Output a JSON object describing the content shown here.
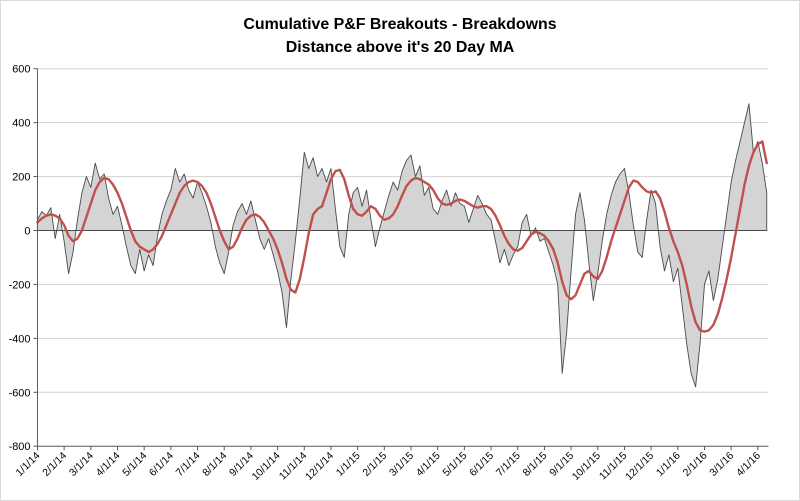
{
  "page": {
    "background": "#ffffff"
  },
  "chart_data": {
    "type": "area",
    "title": "Cumulative P&F Breakouts - Breakdowns",
    "subtitle": "Distance above it's 20 Day MA",
    "legend": "none",
    "grid": true,
    "ylim": [
      -800,
      600
    ],
    "y_ticks": [
      600,
      400,
      200,
      0,
      -200,
      -400,
      -600,
      -800
    ],
    "x_tick_labels": [
      "1/1/14",
      "2/1/14",
      "3/1/14",
      "4/1/14",
      "5/1/14",
      "6/1/14",
      "7/1/14",
      "8/1/14",
      "9/1/14",
      "10/1/14",
      "11/1/14",
      "12/1/14",
      "1/1/15",
      "2/1/15",
      "3/1/15",
      "4/1/15",
      "5/1/15",
      "6/1/15",
      "7/1/15",
      "8/1/15",
      "9/1/15",
      "10/1/15",
      "11/1/15",
      "12/1/15",
      "1/1/16",
      "2/1/16",
      "3/1/16",
      "4/1/16"
    ],
    "x_months_total": 27.4,
    "points_per_month": 6,
    "colors": {
      "area_fill": "#d4d4d4",
      "area_stroke": "#4a4a4a",
      "ma_line": "#c0504d",
      "grid": "#d3d3d3",
      "axis": "#595959",
      "text": "#000000"
    },
    "series": [
      {
        "name": "Cumulative P&F Breakouts - Breakdowns (daily)",
        "type": "area",
        "values": [
          40,
          70,
          55,
          85,
          -30,
          60,
          -40,
          -160,
          -80,
          40,
          140,
          200,
          160,
          250,
          190,
          210,
          120,
          60,
          90,
          20,
          -60,
          -130,
          -160,
          -70,
          -150,
          -90,
          -130,
          -20,
          60,
          110,
          150,
          230,
          180,
          210,
          150,
          120,
          180,
          140,
          90,
          30,
          -60,
          -120,
          -160,
          -80,
          20,
          70,
          100,
          60,
          110,
          40,
          -30,
          -70,
          -30,
          -90,
          -150,
          -230,
          -360,
          -180,
          -40,
          120,
          290,
          230,
          270,
          200,
          230,
          180,
          230,
          80,
          -60,
          -100,
          60,
          140,
          160,
          90,
          150,
          40,
          -60,
          10,
          70,
          130,
          180,
          150,
          220,
          260,
          280,
          200,
          240,
          130,
          160,
          80,
          60,
          110,
          150,
          90,
          140,
          100,
          90,
          30,
          80,
          130,
          100,
          60,
          40,
          -40,
          -120,
          -70,
          -130,
          -90,
          -60,
          30,
          60,
          -20,
          10,
          -40,
          -30,
          -80,
          -130,
          -200,
          -530,
          -380,
          -150,
          60,
          140,
          40,
          -120,
          -260,
          -160,
          -40,
          60,
          130,
          180,
          210,
          230,
          140,
          20,
          -80,
          -100,
          40,
          150,
          100,
          -60,
          -150,
          -90,
          -190,
          -140,
          -280,
          -420,
          -530,
          -580,
          -420,
          -200,
          -150,
          -260,
          -180,
          -60,
          60,
          180,
          260,
          330,
          400,
          470,
          290,
          330,
          250,
          140
        ]
      },
      {
        "name": "20 Day MA",
        "type": "line",
        "values": [
          30,
          45,
          55,
          60,
          55,
          45,
          20,
          -20,
          -40,
          -30,
          0,
          50,
          100,
          150,
          180,
          195,
          190,
          170,
          140,
          100,
          50,
          0,
          -40,
          -60,
          -70,
          -80,
          -70,
          -50,
          -20,
          20,
          60,
          100,
          140,
          165,
          180,
          185,
          180,
          165,
          140,
          100,
          50,
          0,
          -40,
          -70,
          -60,
          -30,
          10,
          40,
          55,
          60,
          50,
          30,
          0,
          -30,
          -70,
          -120,
          -180,
          -220,
          -230,
          -180,
          -100,
          -10,
          60,
          80,
          90,
          140,
          190,
          220,
          225,
          190,
          130,
          80,
          60,
          55,
          70,
          90,
          80,
          55,
          40,
          45,
          60,
          90,
          130,
          165,
          185,
          195,
          190,
          180,
          170,
          150,
          120,
          100,
          95,
          100,
          110,
          115,
          110,
          100,
          90,
          85,
          90,
          90,
          80,
          55,
          20,
          -20,
          -50,
          -70,
          -75,
          -65,
          -40,
          -15,
          -5,
          -10,
          -20,
          -40,
          -70,
          -120,
          -190,
          -240,
          -255,
          -240,
          -200,
          -160,
          -150,
          -170,
          -180,
          -150,
          -100,
          -40,
          10,
          60,
          110,
          160,
          185,
          180,
          160,
          145,
          140,
          145,
          120,
          70,
          10,
          -40,
          -80,
          -130,
          -200,
          -280,
          -340,
          -370,
          -375,
          -370,
          -350,
          -310,
          -250,
          -180,
          -100,
          -10,
          80,
          170,
          240,
          290,
          320,
          330,
          250
        ]
      }
    ]
  }
}
